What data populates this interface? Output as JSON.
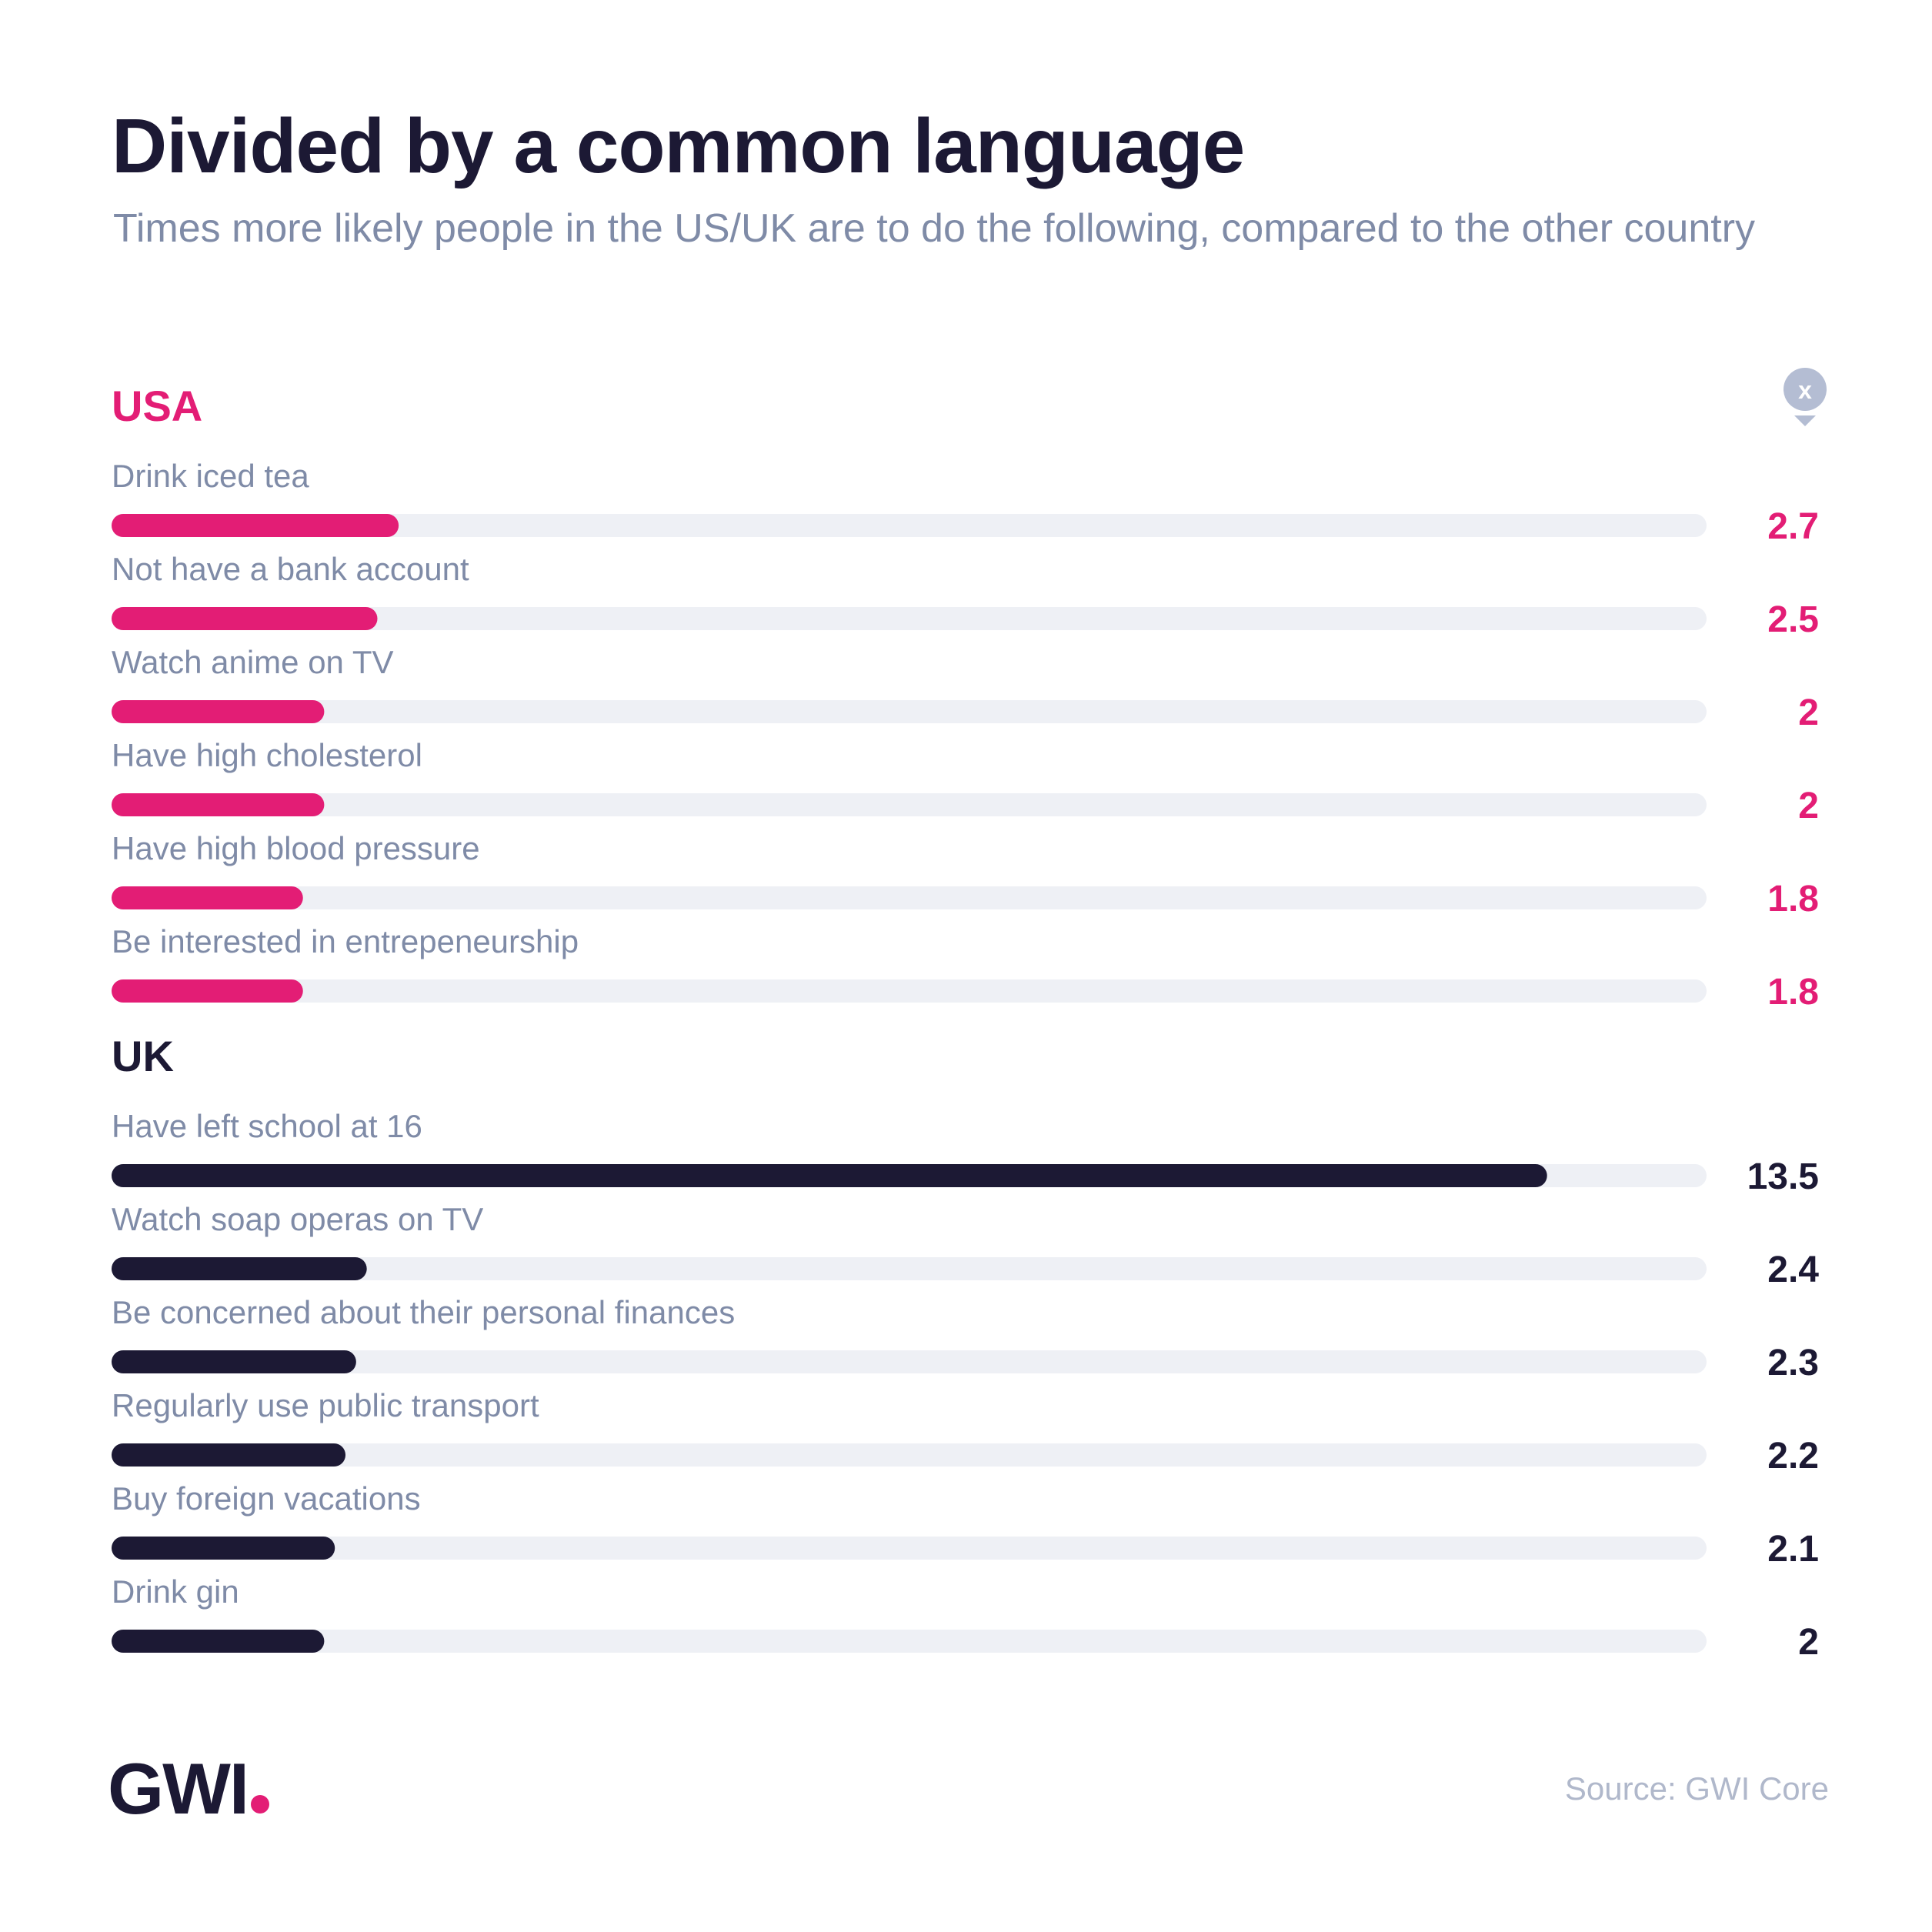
{
  "title": "Divided by a common language",
  "subtitle": "Times more likely people in the US/UK are to do the following, compared to the other country",
  "badge_icon": "x-icon",
  "source": "Source: GWI Core",
  "logo_text": "GWI",
  "colors": {
    "usa": "#e31d75",
    "uk": "#1c1934",
    "track": "#eef0f5",
    "label": "#7f8ba7"
  },
  "chart_data": {
    "type": "bar",
    "orientation": "horizontal",
    "xlim": [
      0,
      15
    ],
    "groups": [
      {
        "name": "USA",
        "color": "#e31d75",
        "categories": [
          "Drink iced tea",
          "Not have a bank account",
          "Watch anime on TV",
          "Have high cholesterol",
          "Have high blood pressure",
          "Be interested in entrepeneurship"
        ],
        "values": [
          2.7,
          2.5,
          2,
          2,
          1.8,
          1.8
        ],
        "value_labels": [
          "2.7",
          "2.5",
          "2",
          "2",
          "1.8",
          "1.8"
        ]
      },
      {
        "name": "UK",
        "color": "#1c1934",
        "categories": [
          "Have left school at 16",
          "Watch soap operas on TV",
          "Be concerned about their personal finances",
          "Regularly use public transport",
          "Buy foreign vacations",
          "Drink gin"
        ],
        "values": [
          13.5,
          2.4,
          2.3,
          2.2,
          2.1,
          2
        ],
        "value_labels": [
          "13.5",
          "2.4",
          "2.3",
          "2.2",
          "2.1",
          "2"
        ]
      }
    ]
  }
}
